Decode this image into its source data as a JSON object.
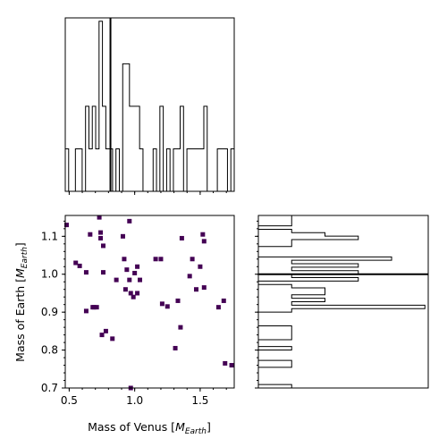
{
  "chart_data": {
    "type": "scatter",
    "layout": "corner-plot",
    "xlabel_main": "Mass of Venus [",
    "xlabel_var": "M",
    "xlabel_sub": "Earth",
    "xlabel_end": "]",
    "ylabel_main": "Mass of Earth [",
    "ylabel_var": "M",
    "ylabel_sub": "Earth",
    "ylabel_end": "]",
    "xlim": [
      0.47,
      1.76
    ],
    "ylim": [
      0.7,
      1.155
    ],
    "x_ticks": [
      0.5,
      1.0,
      1.5
    ],
    "x_tick_labels": [
      "0.5",
      "1.0",
      "1.5"
    ],
    "y_ticks": [
      0.7,
      0.8,
      0.9,
      1.0,
      1.1
    ],
    "y_tick_labels": [
      "0.7",
      "0.8",
      "0.9",
      "1.0",
      "1.1"
    ],
    "x_truth": 0.815,
    "y_truth": 1.0,
    "marker_color": "#440154",
    "x_hist_bins": 50,
    "y_hist_bins": 50,
    "series": [
      {
        "x": [
          0.48,
          0.55,
          0.58,
          0.63,
          0.63,
          0.66,
          0.68,
          0.69,
          0.71,
          0.73,
          0.74,
          0.74,
          0.75,
          0.76,
          0.76,
          0.78,
          0.83,
          0.86,
          0.91,
          0.92,
          0.93,
          0.94,
          0.96,
          0.96,
          0.97,
          0.97,
          0.99,
          1.0,
          1.02,
          1.02,
          1.04,
          1.16,
          1.2,
          1.21,
          1.25,
          1.31,
          1.33,
          1.35,
          1.36,
          1.42,
          1.44,
          1.47,
          1.5,
          1.52,
          1.53,
          1.53,
          1.64,
          1.68,
          1.69,
          1.74
        ],
        "y": [
          1.13,
          1.03,
          1.022,
          1.005,
          0.903,
          1.105,
          0.913,
          0.913,
          0.913,
          1.15,
          1.11,
          1.095,
          0.84,
          1.075,
          1.005,
          0.85,
          0.83,
          0.985,
          1.1,
          1.04,
          0.96,
          1.012,
          1.14,
          0.985,
          0.95,
          0.7,
          0.94,
          1.003,
          0.95,
          1.02,
          0.985,
          1.04,
          1.04,
          0.922,
          0.915,
          0.805,
          0.93,
          0.86,
          1.095,
          0.995,
          1.04,
          0.96,
          1.02,
          1.105,
          0.965,
          1.087,
          0.913,
          0.93,
          0.765,
          0.76
        ]
      }
    ]
  }
}
